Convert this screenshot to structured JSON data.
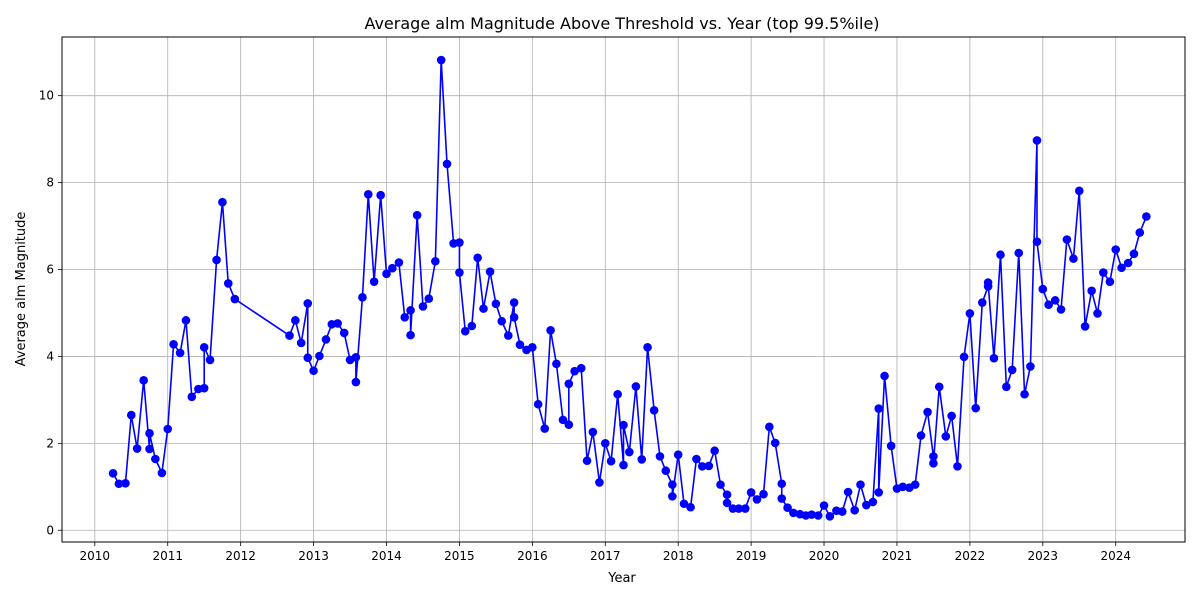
{
  "chart_data": {
    "type": "line",
    "title": "Average alm Magnitude Above Threshold vs. Year (top 99.5%ile)",
    "xlabel": "Year",
    "ylabel": "Average alm Magnitude",
    "xlim": [
      2009.55,
      2024.95
    ],
    "ylim": [
      -0.27,
      11.35
    ],
    "x_ticks": [
      2010,
      2011,
      2012,
      2013,
      2014,
      2015,
      2016,
      2017,
      2018,
      2019,
      2020,
      2021,
      2022,
      2023,
      2024
    ],
    "y_ticks": [
      0,
      2,
      4,
      6,
      8,
      10
    ],
    "grid": true,
    "series": [
      {
        "color": "#0000ff",
        "marker": "circle",
        "points": [
          [
            2010.25,
            1.31
          ],
          [
            2010.33,
            1.07
          ],
          [
            2010.42,
            1.08
          ],
          [
            2010.5,
            2.65
          ],
          [
            2010.58,
            1.88
          ],
          [
            2010.67,
            3.45
          ],
          [
            2010.75,
            1.87
          ],
          [
            2010.75,
            2.23
          ],
          [
            2010.83,
            1.64
          ],
          [
            2010.92,
            1.32
          ],
          [
            2011.0,
            2.33
          ],
          [
            2011.08,
            4.28
          ],
          [
            2011.17,
            4.08
          ],
          [
            2011.25,
            4.83
          ],
          [
            2011.33,
            3.07
          ],
          [
            2011.42,
            3.25
          ],
          [
            2011.5,
            3.27
          ],
          [
            2011.5,
            4.21
          ],
          [
            2011.58,
            3.92
          ],
          [
            2011.67,
            6.22
          ],
          [
            2011.75,
            7.55
          ],
          [
            2011.83,
            5.68
          ],
          [
            2011.92,
            5.32
          ],
          [
            2012.67,
            4.48
          ],
          [
            2012.75,
            4.83
          ],
          [
            2012.83,
            4.31
          ],
          [
            2012.92,
            5.22
          ],
          [
            2012.92,
            3.97
          ],
          [
            2013.0,
            3.67
          ],
          [
            2013.08,
            4.01
          ],
          [
            2013.17,
            4.39
          ],
          [
            2013.25,
            4.74
          ],
          [
            2013.33,
            4.76
          ],
          [
            2013.42,
            4.54
          ],
          [
            2013.5,
            3.92
          ],
          [
            2013.58,
            3.98
          ],
          [
            2013.58,
            3.41
          ],
          [
            2013.67,
            5.36
          ],
          [
            2013.75,
            7.73
          ],
          [
            2013.83,
            5.72
          ],
          [
            2013.92,
            7.71
          ],
          [
            2014.0,
            5.9
          ],
          [
            2014.08,
            6.03
          ],
          [
            2014.17,
            6.16
          ],
          [
            2014.25,
            4.9
          ],
          [
            2014.33,
            5.06
          ],
          [
            2014.33,
            4.49
          ],
          [
            2014.42,
            7.25
          ],
          [
            2014.5,
            5.15
          ],
          [
            2014.58,
            5.33
          ],
          [
            2014.67,
            6.19
          ],
          [
            2014.75,
            10.82
          ],
          [
            2014.83,
            8.43
          ],
          [
            2014.92,
            6.6
          ],
          [
            2015.0,
            6.62
          ],
          [
            2015.0,
            5.93
          ],
          [
            2015.08,
            4.58
          ],
          [
            2015.17,
            4.7
          ],
          [
            2015.25,
            6.27
          ],
          [
            2015.33,
            5.1
          ],
          [
            2015.42,
            5.95
          ],
          [
            2015.5,
            5.21
          ],
          [
            2015.58,
            4.81
          ],
          [
            2015.67,
            4.48
          ],
          [
            2015.75,
            5.24
          ],
          [
            2015.75,
            4.9
          ],
          [
            2015.83,
            4.27
          ],
          [
            2015.92,
            4.15
          ],
          [
            2016.0,
            4.21
          ],
          [
            2016.08,
            2.9
          ],
          [
            2016.17,
            2.34
          ],
          [
            2016.25,
            4.6
          ],
          [
            2016.33,
            3.83
          ],
          [
            2016.42,
            2.54
          ],
          [
            2016.5,
            2.43
          ],
          [
            2016.5,
            3.37
          ],
          [
            2016.58,
            3.66
          ],
          [
            2016.67,
            3.73
          ],
          [
            2016.75,
            1.6
          ],
          [
            2016.83,
            2.26
          ],
          [
            2016.92,
            1.1
          ],
          [
            2017.0,
            2.0
          ],
          [
            2017.08,
            1.59
          ],
          [
            2017.17,
            3.13
          ],
          [
            2017.25,
            1.5
          ],
          [
            2017.25,
            2.42
          ],
          [
            2017.33,
            1.8
          ],
          [
            2017.42,
            3.31
          ],
          [
            2017.5,
            1.63
          ],
          [
            2017.58,
            4.21
          ],
          [
            2017.67,
            2.76
          ],
          [
            2017.75,
            1.7
          ],
          [
            2017.83,
            1.37
          ],
          [
            2017.92,
            1.05
          ],
          [
            2017.92,
            0.78
          ],
          [
            2018.0,
            1.74
          ],
          [
            2018.08,
            0.61
          ],
          [
            2018.17,
            0.53
          ],
          [
            2018.25,
            1.64
          ],
          [
            2018.33,
            1.47
          ],
          [
            2018.42,
            1.48
          ],
          [
            2018.5,
            1.83
          ],
          [
            2018.58,
            1.05
          ],
          [
            2018.67,
            0.82
          ],
          [
            2018.67,
            0.63
          ],
          [
            2018.75,
            0.5
          ],
          [
            2018.83,
            0.5
          ],
          [
            2018.92,
            0.5
          ],
          [
            2019.0,
            0.87
          ],
          [
            2019.08,
            0.71
          ],
          [
            2019.17,
            0.83
          ],
          [
            2019.25,
            2.38
          ],
          [
            2019.33,
            2.01
          ],
          [
            2019.42,
            1.07
          ],
          [
            2019.42,
            0.73
          ],
          [
            2019.5,
            0.52
          ],
          [
            2019.58,
            0.4
          ],
          [
            2019.67,
            0.37
          ],
          [
            2019.75,
            0.34
          ],
          [
            2019.83,
            0.36
          ],
          [
            2019.92,
            0.34
          ],
          [
            2020.0,
            0.57
          ],
          [
            2020.08,
            0.32
          ],
          [
            2020.17,
            0.45
          ],
          [
            2020.25,
            0.43
          ],
          [
            2020.33,
            0.88
          ],
          [
            2020.42,
            0.46
          ],
          [
            2020.5,
            1.05
          ],
          [
            2020.58,
            0.58
          ],
          [
            2020.67,
            0.65
          ],
          [
            2020.75,
            2.8
          ],
          [
            2020.75,
            0.87
          ],
          [
            2020.83,
            3.55
          ],
          [
            2020.92,
            1.94
          ],
          [
            2021.0,
            0.96
          ],
          [
            2021.08,
            1.0
          ],
          [
            2021.17,
            0.98
          ],
          [
            2021.25,
            1.05
          ],
          [
            2021.33,
            2.18
          ],
          [
            2021.42,
            2.72
          ],
          [
            2021.5,
            1.7
          ],
          [
            2021.5,
            1.54
          ],
          [
            2021.58,
            3.3
          ],
          [
            2021.67,
            2.16
          ],
          [
            2021.75,
            2.63
          ],
          [
            2021.83,
            1.47
          ],
          [
            2021.92,
            3.99
          ],
          [
            2022.0,
            4.99
          ],
          [
            2022.08,
            2.81
          ],
          [
            2022.17,
            5.24
          ],
          [
            2022.25,
            5.61
          ],
          [
            2022.25,
            5.7
          ],
          [
            2022.33,
            3.96
          ],
          [
            2022.42,
            6.34
          ],
          [
            2022.5,
            3.3
          ],
          [
            2022.58,
            3.69
          ],
          [
            2022.67,
            6.38
          ],
          [
            2022.75,
            3.13
          ],
          [
            2022.83,
            3.77
          ],
          [
            2022.92,
            8.97
          ],
          [
            2022.92,
            6.64
          ],
          [
            2023.0,
            5.55
          ],
          [
            2023.08,
            5.19
          ],
          [
            2023.17,
            5.29
          ],
          [
            2023.25,
            5.08
          ],
          [
            2023.33,
            6.69
          ],
          [
            2023.42,
            6.25
          ],
          [
            2023.5,
            7.81
          ],
          [
            2023.58,
            4.69
          ],
          [
            2023.67,
            5.51
          ],
          [
            2023.75,
            4.99
          ],
          [
            2023.83,
            5.93
          ],
          [
            2023.92,
            5.72
          ],
          [
            2024.0,
            6.46
          ],
          [
            2024.08,
            6.04
          ],
          [
            2024.17,
            6.15
          ],
          [
            2024.25,
            6.36
          ],
          [
            2024.33,
            6.85
          ],
          [
            2024.42,
            7.22
          ]
        ]
      }
    ]
  }
}
